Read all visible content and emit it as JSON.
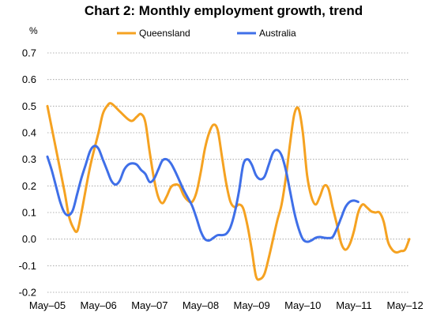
{
  "chart_data": {
    "type": "line",
    "title": "Chart 2: Monthly employment growth, trend",
    "ylabel": "%",
    "xlabel": "",
    "ylim": [
      -0.2,
      0.7
    ],
    "yticks": [
      "0.7",
      "0.6",
      "0.5",
      "0.4",
      "0.3",
      "0.2",
      "0.1",
      "0.0",
      "-0.1",
      "-0.2"
    ],
    "ytick_values": [
      0.7,
      0.6,
      0.5,
      0.4,
      0.3,
      0.2,
      0.1,
      0.0,
      -0.1,
      -0.2
    ],
    "xticks": [
      "May–05",
      "May–06",
      "May–07",
      "May–08",
      "May–09",
      "May–10",
      "May–11",
      "May–12"
    ],
    "xtick_values": [
      0,
      12,
      24,
      36,
      48,
      60,
      72,
      84
    ],
    "grid": true,
    "legend_position": "top",
    "series": [
      {
        "name": "Queensland",
        "color": "#F5A221",
        "points": [
          [
            0,
            0.5
          ],
          [
            2,
            0.34
          ],
          [
            4,
            0.18
          ],
          [
            5,
            0.09
          ],
          [
            6,
            0.045
          ],
          [
            7,
            0.03
          ],
          [
            8,
            0.1
          ],
          [
            10,
            0.27
          ],
          [
            12,
            0.4
          ],
          [
            13,
            0.47
          ],
          [
            14,
            0.5
          ],
          [
            15,
            0.51
          ],
          [
            17,
            0.48
          ],
          [
            19,
            0.45
          ],
          [
            20,
            0.445
          ],
          [
            21,
            0.46
          ],
          [
            22,
            0.47
          ],
          [
            23,
            0.44
          ],
          [
            24,
            0.33
          ],
          [
            25,
            0.23
          ],
          [
            26,
            0.16
          ],
          [
            27,
            0.135
          ],
          [
            28,
            0.16
          ],
          [
            29,
            0.195
          ],
          [
            30,
            0.205
          ],
          [
            31,
            0.2
          ],
          [
            32,
            0.165
          ],
          [
            33,
            0.145
          ],
          [
            34,
            0.14
          ],
          [
            35,
            0.175
          ],
          [
            36,
            0.25
          ],
          [
            37,
            0.34
          ],
          [
            38,
            0.4
          ],
          [
            39,
            0.43
          ],
          [
            40,
            0.41
          ],
          [
            41,
            0.31
          ],
          [
            42,
            0.21
          ],
          [
            43,
            0.14
          ],
          [
            44,
            0.12
          ],
          [
            45,
            0.13
          ],
          [
            46,
            0.115
          ],
          [
            47,
            0.05
          ],
          [
            48,
            -0.04
          ],
          [
            49,
            -0.14
          ],
          [
            50,
            -0.15
          ],
          [
            51,
            -0.13
          ],
          [
            52,
            -0.07
          ],
          [
            53,
            0.0
          ],
          [
            54,
            0.07
          ],
          [
            55,
            0.13
          ],
          [
            56,
            0.23
          ],
          [
            57,
            0.36
          ],
          [
            58,
            0.47
          ],
          [
            59,
            0.49
          ],
          [
            60,
            0.4
          ],
          [
            61,
            0.24
          ],
          [
            62,
            0.16
          ],
          [
            63,
            0.13
          ],
          [
            64,
            0.16
          ],
          [
            65,
            0.2
          ],
          [
            66,
            0.19
          ],
          [
            67,
            0.12
          ],
          [
            68,
            0.055
          ],
          [
            69,
            -0.015
          ],
          [
            70,
            -0.04
          ],
          [
            71,
            -0.02
          ],
          [
            72,
            0.03
          ],
          [
            73,
            0.1
          ],
          [
            74,
            0.13
          ],
          [
            75,
            0.12
          ],
          [
            76,
            0.105
          ],
          [
            77,
            0.1
          ],
          [
            78,
            0.1
          ],
          [
            79,
            0.065
          ],
          [
            80,
            -0.01
          ],
          [
            81,
            -0.04
          ],
          [
            82,
            -0.05
          ],
          [
            83,
            -0.045
          ],
          [
            84,
            -0.04
          ],
          [
            85,
            0.0
          ]
        ]
      },
      {
        "name": "Australia",
        "color": "#3F6FE8",
        "points": [
          [
            0,
            0.31
          ],
          [
            1,
            0.26
          ],
          [
            2,
            0.2
          ],
          [
            3,
            0.14
          ],
          [
            4,
            0.1
          ],
          [
            5,
            0.09
          ],
          [
            6,
            0.11
          ],
          [
            7,
            0.17
          ],
          [
            8,
            0.23
          ],
          [
            9,
            0.28
          ],
          [
            10,
            0.33
          ],
          [
            11,
            0.35
          ],
          [
            12,
            0.34
          ],
          [
            13,
            0.3
          ],
          [
            14,
            0.26
          ],
          [
            15,
            0.22
          ],
          [
            16,
            0.205
          ],
          [
            17,
            0.22
          ],
          [
            18,
            0.26
          ],
          [
            19,
            0.28
          ],
          [
            20,
            0.285
          ],
          [
            21,
            0.28
          ],
          [
            22,
            0.26
          ],
          [
            23,
            0.245
          ],
          [
            24,
            0.215
          ],
          [
            25,
            0.225
          ],
          [
            26,
            0.26
          ],
          [
            27,
            0.295
          ],
          [
            28,
            0.3
          ],
          [
            29,
            0.285
          ],
          [
            30,
            0.255
          ],
          [
            31,
            0.22
          ],
          [
            32,
            0.185
          ],
          [
            33,
            0.155
          ],
          [
            34,
            0.125
          ],
          [
            35,
            0.08
          ],
          [
            36,
            0.03
          ],
          [
            37,
            0.0
          ],
          [
            38,
            -0.005
          ],
          [
            39,
            0.005
          ],
          [
            40,
            0.015
          ],
          [
            41,
            0.015
          ],
          [
            42,
            0.02
          ],
          [
            43,
            0.045
          ],
          [
            44,
            0.1
          ],
          [
            45,
            0.18
          ],
          [
            46,
            0.28
          ],
          [
            47,
            0.3
          ],
          [
            48,
            0.28
          ],
          [
            49,
            0.24
          ],
          [
            50,
            0.225
          ],
          [
            51,
            0.235
          ],
          [
            52,
            0.28
          ],
          [
            53,
            0.325
          ],
          [
            54,
            0.335
          ],
          [
            55,
            0.315
          ],
          [
            56,
            0.26
          ],
          [
            57,
            0.18
          ],
          [
            58,
            0.1
          ],
          [
            59,
            0.04
          ],
          [
            60,
            0.0
          ],
          [
            61,
            -0.01
          ],
          [
            62,
            -0.005
          ],
          [
            63,
            0.005
          ],
          [
            64,
            0.008
          ],
          [
            65,
            0.005
          ],
          [
            66,
            0.004
          ],
          [
            67,
            0.008
          ],
          [
            68,
            0.04
          ],
          [
            69,
            0.08
          ],
          [
            70,
            0.12
          ],
          [
            71,
            0.14
          ],
          [
            72,
            0.145
          ],
          [
            73,
            0.14
          ]
        ]
      }
    ]
  }
}
